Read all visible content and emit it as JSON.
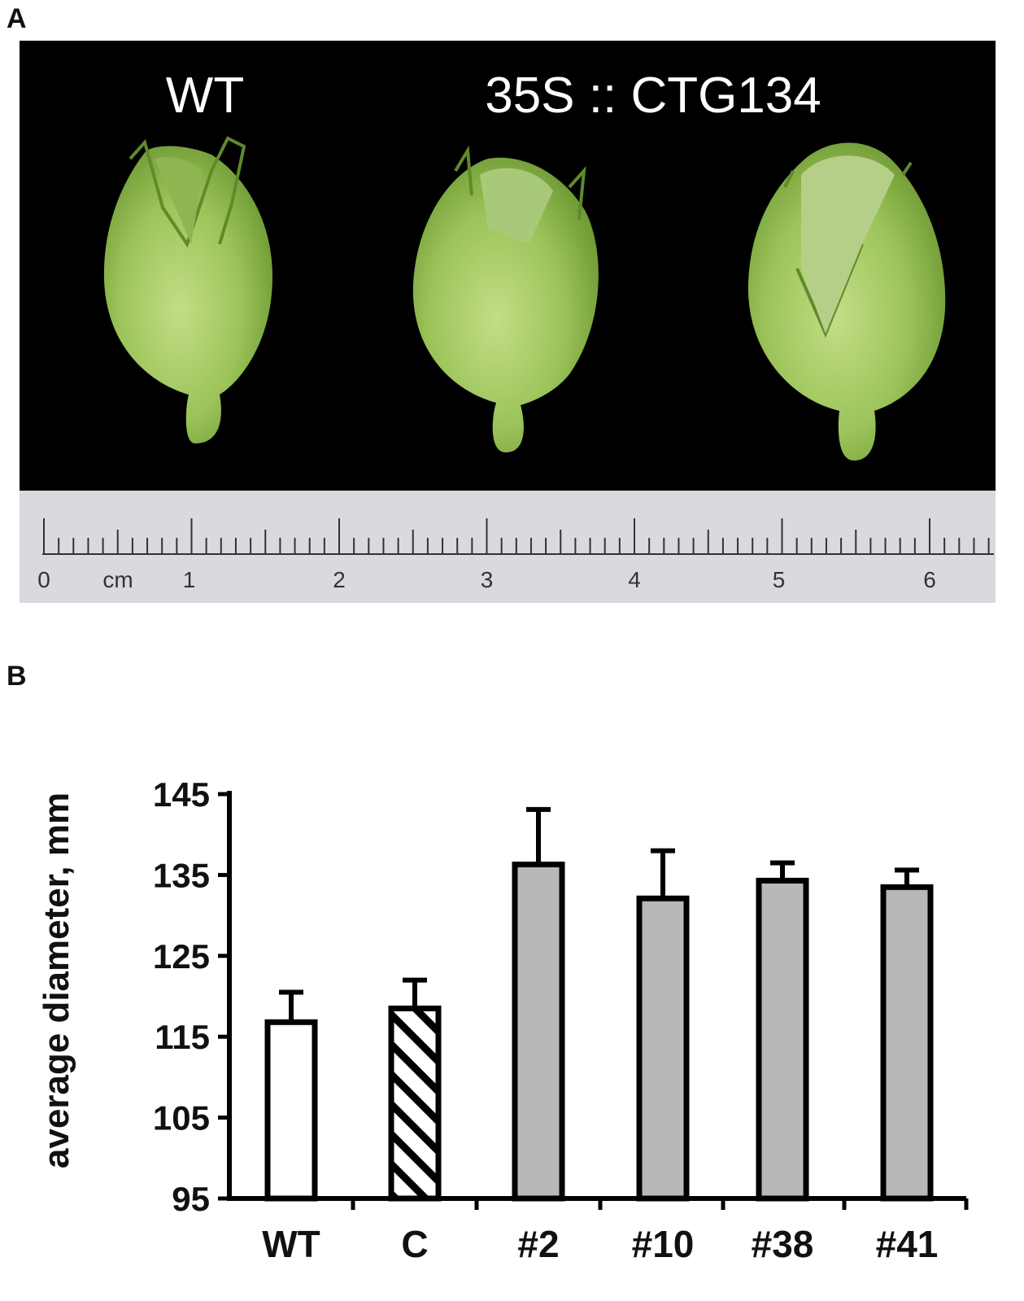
{
  "panel_a": {
    "label": "A",
    "title_left": "WT",
    "title_right": "35S :: CTG134",
    "ruler": {
      "unit": "cm",
      "numbers": [
        "0",
        "1",
        "2",
        "3",
        "4",
        "5",
        "6"
      ]
    },
    "colors": {
      "background": "#000000",
      "bud": "#9cc45a",
      "ruler": "#dcd8e0"
    }
  },
  "panel_b": {
    "label": "B"
  },
  "chart_data": {
    "type": "bar",
    "title": "",
    "xlabel": "",
    "ylabel": "average diameter, mm",
    "categories": [
      "WT",
      "C",
      "#2",
      "#10",
      "#38",
      "#41"
    ],
    "values": [
      116.8,
      118.5,
      136.3,
      132.1,
      134.3,
      133.5
    ],
    "errors": [
      3.7,
      3.5,
      6.8,
      5.9,
      2.2,
      2.1
    ],
    "fills": [
      "white",
      "hatched",
      "gray",
      "gray",
      "gray",
      "gray"
    ],
    "ylim": [
      95,
      145
    ],
    "yticks": [
      95,
      105,
      115,
      125,
      135,
      145
    ],
    "grid": false,
    "legend": "none",
    "colors": {
      "gray": "#b8b8b8",
      "outline": "#000000"
    }
  }
}
